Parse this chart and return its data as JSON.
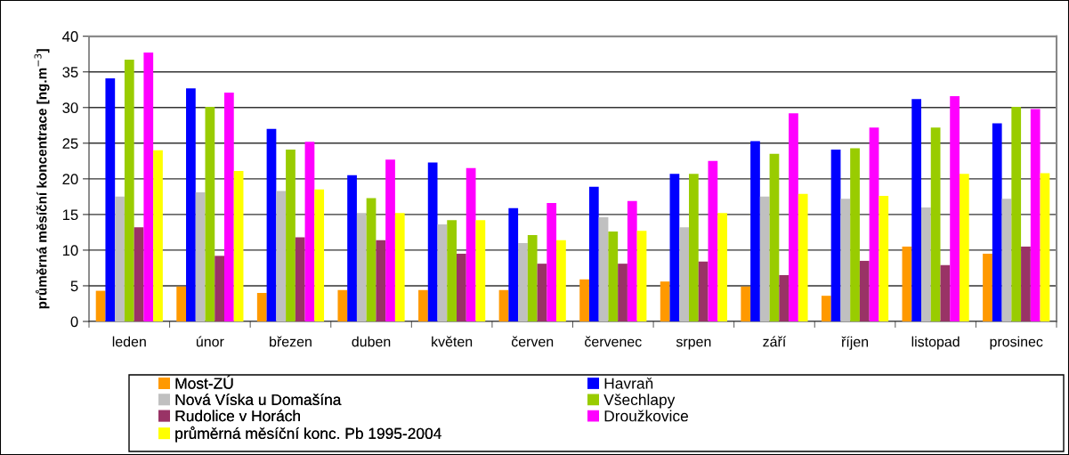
{
  "chart_data": {
    "type": "bar",
    "ylabel": "průměrná měsíční koncentrace [ng.m$^{−3}$]",
    "categories": [
      "leden",
      "únor",
      "březen",
      "duben",
      "květen",
      "červen",
      "červenec",
      "srpen",
      "září",
      "říjen",
      "listopad",
      "prosinec"
    ],
    "series": [
      {
        "name": "Most-ZÚ",
        "color": "#ff9900",
        "values": [
          4.3,
          4.9,
          4.0,
          4.4,
          4.4,
          4.4,
          5.9,
          5.6,
          4.9,
          3.6,
          10.5,
          9.5
        ]
      },
      {
        "name": "Havraň",
        "color": "#0000ff",
        "values": [
          34.1,
          32.7,
          27.0,
          20.5,
          22.3,
          15.9,
          18.9,
          20.7,
          25.3,
          24.1,
          31.2,
          27.8
        ]
      },
      {
        "name": "Nová Víska u Domašína",
        "color": "#c0c0c0",
        "values": [
          17.5,
          18.1,
          18.3,
          15.2,
          13.6,
          11.0,
          14.6,
          13.2,
          17.5,
          17.2,
          16.0,
          17.2
        ]
      },
      {
        "name": "Všechlapy",
        "color": "#99cc00",
        "values": [
          36.7,
          30.1,
          24.1,
          17.3,
          14.2,
          12.1,
          12.6,
          20.7,
          23.5,
          24.3,
          27.2,
          30.1
        ]
      },
      {
        "name": "Rudolice v Horách",
        "color": "#993366",
        "values": [
          13.2,
          9.2,
          11.8,
          11.4,
          9.5,
          8.1,
          8.1,
          8.4,
          6.5,
          8.5,
          7.9,
          10.5
        ]
      },
      {
        "name": "Droužkovice",
        "color": "#ff00ff",
        "values": [
          37.7,
          32.1,
          25.2,
          22.7,
          21.5,
          16.6,
          16.9,
          22.5,
          29.2,
          27.2,
          31.6,
          29.8
        ]
      },
      {
        "name": "průměrná měsíční konc. Pb 1995-2004",
        "color": "#ffff00",
        "values": [
          24.0,
          21.1,
          18.5,
          15.2,
          14.2,
          11.4,
          12.7,
          15.2,
          17.9,
          17.6,
          20.7,
          20.8
        ]
      }
    ],
    "ylim": [
      0,
      40
    ],
    "yticks": [
      0,
      5,
      10,
      15,
      20,
      25,
      30,
      35,
      40
    ],
    "grid": "y",
    "legend": "bottom"
  }
}
